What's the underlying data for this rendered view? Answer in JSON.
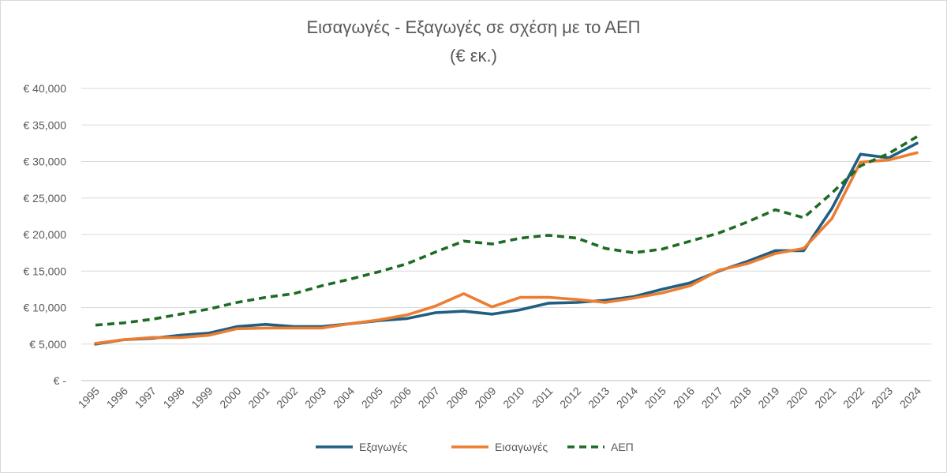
{
  "chart_data": {
    "type": "line",
    "title": "Εισαγωγές - Εξαγωγές σε σχέση με το ΑΕΠ",
    "subtitle": "(€ εκ.)",
    "xlabel": "",
    "ylabel": "",
    "x": [
      "1995",
      "1996",
      "1997",
      "1998",
      "1999",
      "2000",
      "2001",
      "2002",
      "2003",
      "2004",
      "2005",
      "2006",
      "2007",
      "2008",
      "2009",
      "2010",
      "2011",
      "2012",
      "2013",
      "2014",
      "2015",
      "2016",
      "2017",
      "2018",
      "2019",
      "2020",
      "2021",
      "2022",
      "2023",
      "2024"
    ],
    "ylim": [
      0,
      40000
    ],
    "yticks": [
      0,
      5000,
      10000,
      15000,
      20000,
      25000,
      30000,
      35000,
      40000
    ],
    "ytick_labels": [
      "€ -",
      "€ 5,000",
      "€ 10,000",
      "€ 15,000",
      "€ 20,000",
      "€ 25,000",
      "€ 30,000",
      "€ 35,000",
      "€ 40,000"
    ],
    "grid": true,
    "legend_position": "bottom",
    "series": [
      {
        "name": "Εξαγωγές",
        "color": "#1f5f82",
        "style": "solid",
        "values": [
          5000,
          5600,
          5800,
          6200,
          6500,
          7400,
          7700,
          7400,
          7400,
          7800,
          8200,
          8500,
          9300,
          9500,
          9100,
          9700,
          10600,
          10700,
          11000,
          11500,
          12500,
          13400,
          15000,
          16300,
          17800,
          17800,
          23600,
          31000,
          30500,
          32500
        ]
      },
      {
        "name": "Εισαγωγές",
        "color": "#ed7d31",
        "style": "solid",
        "values": [
          5100,
          5600,
          5900,
          5900,
          6200,
          7100,
          7200,
          7200,
          7200,
          7800,
          8300,
          9000,
          10200,
          11900,
          10100,
          11400,
          11400,
          11100,
          10700,
          11300,
          12000,
          13000,
          15100,
          16000,
          17400,
          18100,
          22200,
          29900,
          30200,
          31200
        ]
      },
      {
        "name": "ΑΕΠ",
        "color": "#1e6b24",
        "style": "dashed",
        "values": [
          7600,
          7900,
          8400,
          9100,
          9800,
          10700,
          11400,
          11900,
          13000,
          13900,
          14900,
          16000,
          17600,
          19100,
          18700,
          19500,
          19900,
          19500,
          18100,
          17500,
          18000,
          19100,
          20200,
          21700,
          23400,
          22300,
          25700,
          29400,
          31100,
          33400
        ]
      }
    ]
  }
}
